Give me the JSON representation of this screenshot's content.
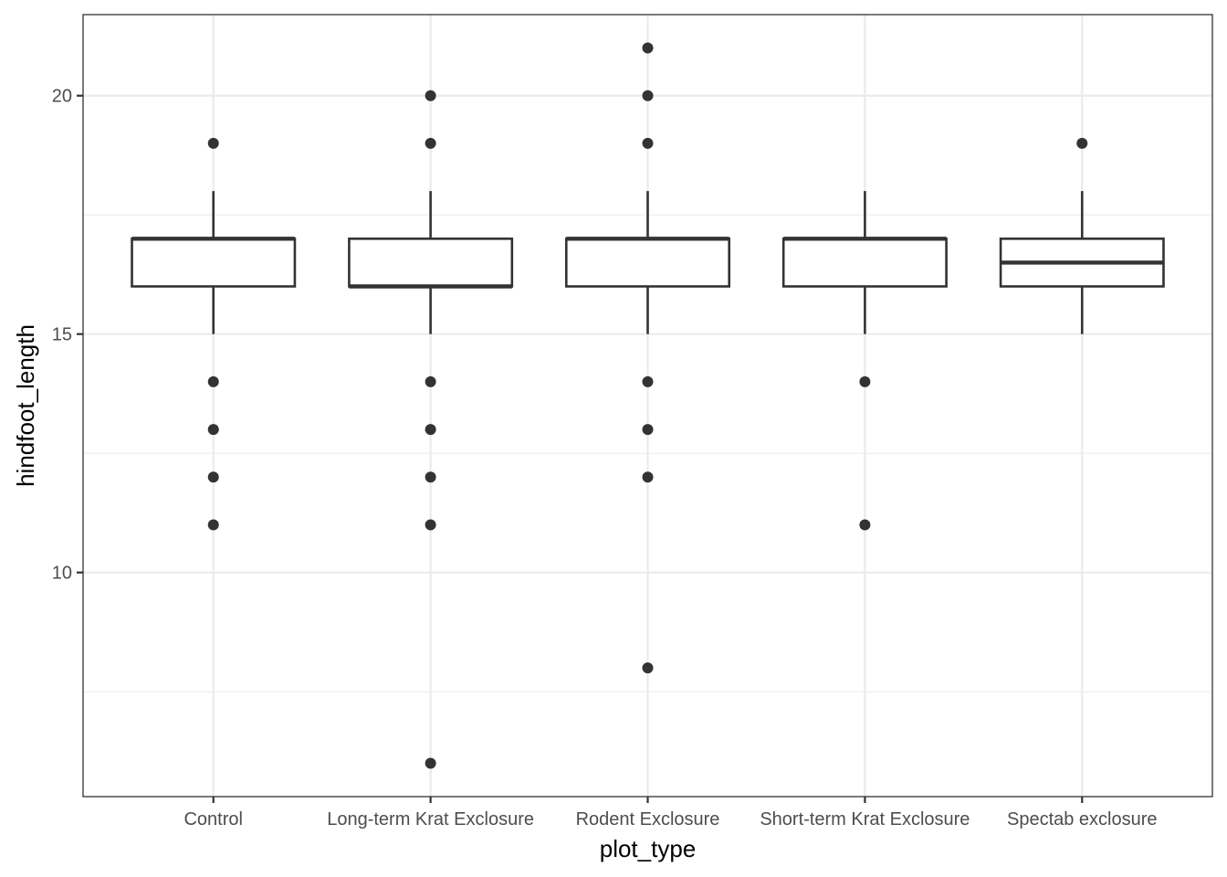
{
  "chart_data": {
    "type": "boxplot",
    "xlabel": "plot_type",
    "ylabel": "hindfoot_length",
    "ylim": [
      5.3,
      21.7
    ],
    "yticks": [
      10,
      15,
      20
    ],
    "minor_yticks": [
      7.5,
      12.5,
      17.5
    ],
    "grid": true,
    "categories": [
      "Control",
      "Long-term Krat Exclosure",
      "Rodent Exclosure",
      "Short-term Krat Exclosure",
      "Spectab exclosure"
    ],
    "boxes": [
      {
        "category": "Control",
        "lower_whisker": 15,
        "q1": 16,
        "median": 17,
        "q3": 17,
        "upper_whisker": 18,
        "outliers": [
          19,
          14,
          13,
          12,
          11
        ]
      },
      {
        "category": "Long-term Krat Exclosure",
        "lower_whisker": 15,
        "q1": 16,
        "median": 16,
        "q3": 17,
        "upper_whisker": 18,
        "outliers": [
          20,
          19,
          14,
          13,
          12,
          11,
          6
        ]
      },
      {
        "category": "Rodent Exclosure",
        "lower_whisker": 15,
        "q1": 16,
        "median": 17,
        "q3": 17,
        "upper_whisker": 18,
        "outliers": [
          21,
          20,
          19,
          14,
          13,
          12,
          8
        ]
      },
      {
        "category": "Short-term Krat Exclosure",
        "lower_whisker": 15,
        "q1": 16,
        "median": 17,
        "q3": 17,
        "upper_whisker": 18,
        "outliers": [
          14,
          11
        ]
      },
      {
        "category": "Spectab exclosure",
        "lower_whisker": 15,
        "q1": 16,
        "median": 16.5,
        "q3": 17,
        "upper_whisker": 18,
        "outliers": [
          19
        ]
      }
    ],
    "colors": {
      "box_line": "#333333",
      "grid": "#ebebeb",
      "panel_border": "#333333",
      "outlier": "#333333"
    }
  }
}
